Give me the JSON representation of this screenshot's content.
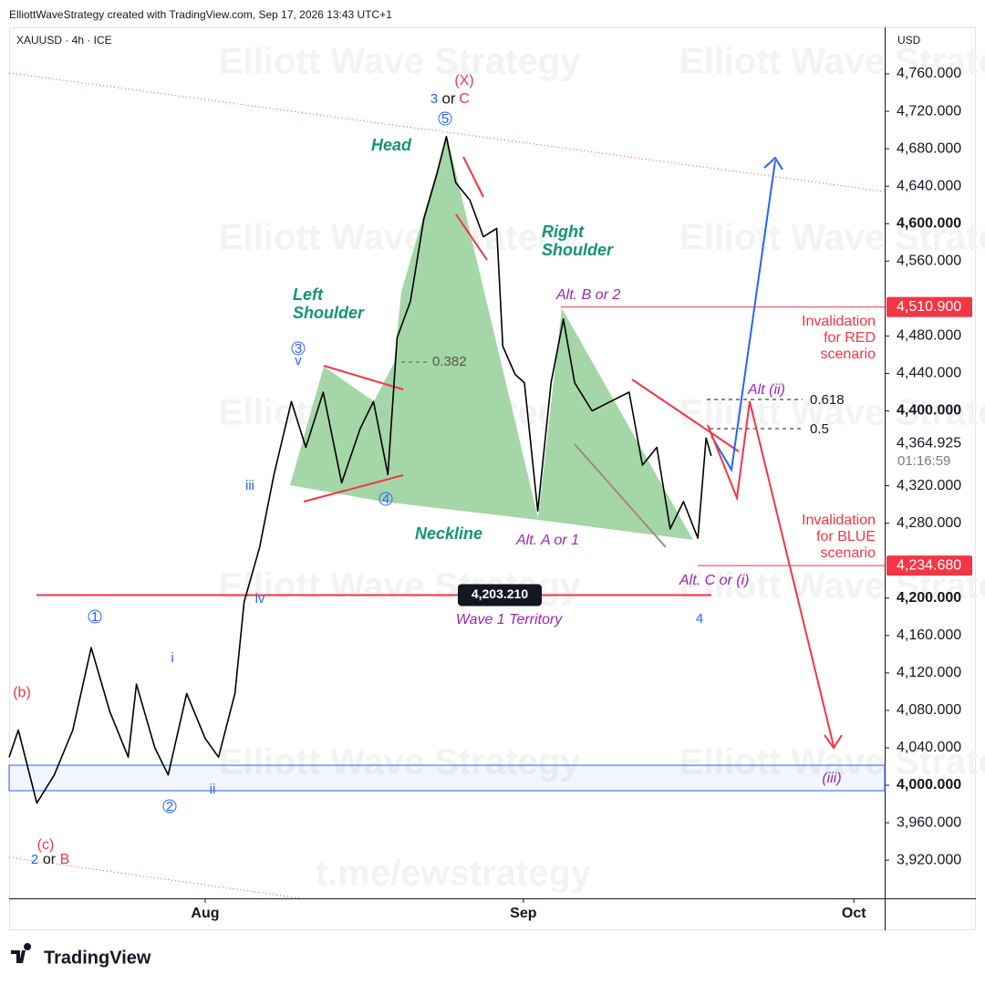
{
  "header": {
    "credit": "ElliottWaveStrategy created with TradingView.com, Sep 17, 2026 13:43 UTC+1",
    "brand": "TradingView"
  },
  "watermarks": {
    "repeat": "Elliott Wave Strategy",
    "link": "t.me/ewstrategy"
  },
  "chart_data": {
    "type": "line",
    "symbol": "XAUUSD · 4h · ICE",
    "currency": "USD",
    "color": "#000000",
    "x": [
      -19.1,
      -18.2,
      -16.4,
      -14.7,
      -12.9,
      -11.1,
      -9.3,
      -7.5,
      -6.7,
      -4.9,
      -3.6,
      -1.8,
      0,
      1.3,
      2.9,
      3.8,
      5.3,
      6.7,
      8.4,
      9.8,
      11.5,
      13.3,
      15.1,
      16.4,
      17.8,
      18.7,
      20,
      21.3,
      22.6,
      23.5,
      24.4,
      25.8,
      27.1,
      28.4,
      29,
      30.2,
      31.1,
      32.4,
      33.7,
      34.9,
      36,
      37.7,
      39.5,
      41.3,
      42.6,
      44,
      45.3,
      46.6,
      48,
      48.8,
      49.3
    ],
    "values": [
      4030,
      4059,
      3981,
      4011,
      4059,
      4147,
      4079,
      4030,
      4108,
      4040,
      4011,
      4098,
      4050,
      4030,
      4098,
      4196,
      4254,
      4332,
      4410,
      4361,
      4420,
      4323,
      4381,
      4410,
      4332,
      4478,
      4517,
      4605,
      4654,
      4693,
      4644,
      4625,
      4586,
      4595,
      4469,
      4439,
      4430,
      4293,
      4430,
      4498,
      4430,
      4400,
      4410,
      4420,
      4342,
      4361,
      4274,
      4303,
      4264,
      4371,
      4352
    ],
    "xlim": [
      -19.1,
      66.2
    ],
    "xticks": [
      {
        "value": 0,
        "label": "Aug"
      },
      {
        "value": 31,
        "label": "Sep"
      },
      {
        "value": 63.2,
        "label": "Oct"
      }
    ],
    "ylim": [
      3879.2,
      4809.7
    ],
    "yticks": [
      {
        "value": 3920,
        "label": "3,920.000"
      },
      {
        "value": 3960,
        "label": "3,960.000"
      },
      {
        "value": 4000,
        "label": "4,000.000"
      },
      {
        "value": 4040,
        "label": "4,040.000"
      },
      {
        "value": 4080,
        "label": "4,080.000"
      },
      {
        "value": 4120,
        "label": "4,120.000"
      },
      {
        "value": 4160,
        "label": "4,160.000"
      },
      {
        "value": 4200,
        "label": "4,200.000"
      },
      {
        "value": 4280,
        "label": "4,280.000"
      },
      {
        "value": 4320,
        "label": "4,320.000"
      },
      {
        "value": 4400,
        "label": "4,400.000"
      },
      {
        "value": 4440,
        "label": "4,440.000"
      },
      {
        "value": 4480,
        "label": "4,480.000"
      },
      {
        "value": 4560,
        "label": "4,560.000"
      },
      {
        "value": 4600,
        "label": "4,600.000"
      },
      {
        "value": 4640,
        "label": "4,640.000"
      },
      {
        "value": 4680,
        "label": "4,680.000"
      },
      {
        "value": 4720,
        "label": "4,720.000"
      },
      {
        "value": 4760,
        "label": "4,760.000"
      }
    ],
    "levels": [
      {
        "value": 4510.9,
        "label": "4,510.900"
      },
      {
        "value": 4234.68,
        "label": "4,234.680"
      },
      {
        "value": 4203.21,
        "label": "4,203.210"
      }
    ],
    "last_price": {
      "value": 4364.925,
      "label": "4,364.925"
    },
    "countdown": "01:16:59",
    "support_zone": [
      3994.2,
      4021.4
    ],
    "annotations": {
      "x_wave": "(X)",
      "three": "3",
      "or1": "or",
      "c1": "C",
      "circ5": "5",
      "head": "Head",
      "left_shoulder": [
        "Left",
        "Shoulder"
      ],
      "right_shoulder": [
        "Right",
        "Shoulder"
      ],
      "circ3": "3",
      "v": "v",
      "fib382": 0.382,
      "circ4": "4",
      "iii": "iii",
      "neckline": "Neckline",
      "alt_a": "Alt. A or 1",
      "alt_b": "Alt. B or 2",
      "alt_c": "Alt. C or (i)",
      "alt_ii": "Alt (ii)",
      "fib618": 0.618,
      "fib5": 0.5,
      "inv_red": [
        "Invalidation",
        "for RED",
        "scenario"
      ],
      "inv_blue": [
        "Invalidation",
        "for BLUE",
        "scenario"
      ],
      "wave1": "Wave 1 Territory",
      "four": "4",
      "iv": "iv",
      "circ1": "1",
      "i": "i",
      "b": "(b)",
      "circ2": "2",
      "ii": "ii",
      "iii_purple": "(iii)",
      "c_paren": "(c)",
      "two": "2",
      "or2": "or",
      "B": "B"
    }
  }
}
